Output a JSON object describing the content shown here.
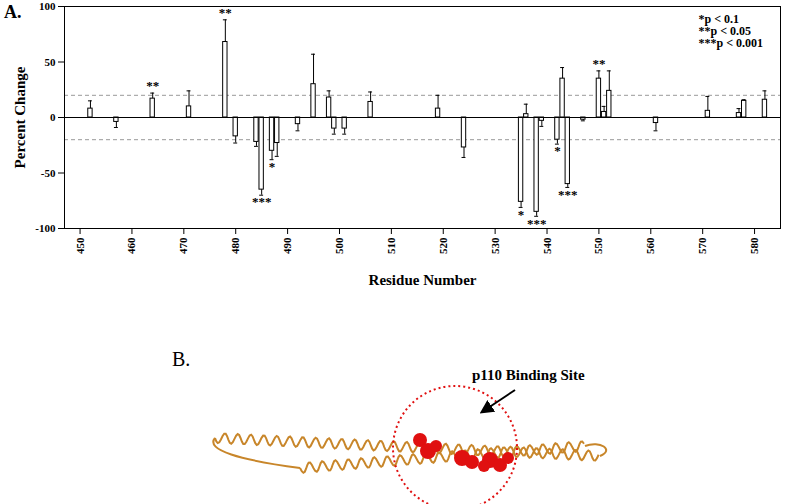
{
  "chart_data": {
    "type": "bar",
    "x_label": "Residue Number",
    "y_label": "Percent Change",
    "x": [
      452,
      457,
      464,
      471,
      478,
      480,
      484,
      485,
      487,
      488,
      492,
      495,
      498,
      499,
      501,
      506,
      519,
      524,
      535,
      536,
      538,
      539,
      542,
      543,
      544,
      547,
      550,
      551,
      552,
      561,
      571,
      577,
      578,
      582
    ],
    "values": [
      8,
      -4,
      17,
      10,
      68,
      -17,
      -22,
      -65,
      -30,
      -23,
      -6,
      30,
      18,
      -10,
      -10,
      14,
      8,
      -27,
      -76,
      3,
      -85,
      -3,
      -20,
      35,
      -60,
      -2,
      35,
      5,
      24,
      -5,
      6,
      4,
      15,
      16
    ],
    "errors": [
      7,
      5,
      5,
      14,
      20,
      6,
      4,
      5,
      8,
      12,
      6,
      27,
      6,
      5,
      5,
      9,
      12,
      9,
      5,
      9,
      4,
      5,
      4,
      10,
      3,
      1,
      7,
      5,
      18,
      7,
      13,
      4,
      1,
      8
    ],
    "significance": [
      null,
      null,
      "**",
      null,
      "**",
      null,
      null,
      "***",
      "*",
      null,
      null,
      null,
      null,
      null,
      null,
      null,
      null,
      null,
      "*",
      null,
      "***",
      null,
      "*",
      null,
      "***",
      null,
      "**",
      null,
      null,
      null,
      null,
      null,
      null,
      null
    ],
    "significance_key": [
      "*p < 0.1",
      "**p < 0.05",
      "***p < 0.001"
    ],
    "reference_lines": [
      20,
      -20
    ],
    "baseline": 0,
    "color": "#ffffff",
    "xlim": [
      447,
      585
    ],
    "xticks": [
      450,
      460,
      470,
      480,
      490,
      500,
      510,
      520,
      530,
      540,
      550,
      560,
      570,
      580
    ],
    "ylim": [
      -100,
      100
    ],
    "yticks": [
      -100,
      -50,
      0,
      50,
      100
    ],
    "grid": false
  },
  "panel_labels": [
    "A.",
    "B."
  ],
  "structure_annotation": "p110 Binding Site"
}
